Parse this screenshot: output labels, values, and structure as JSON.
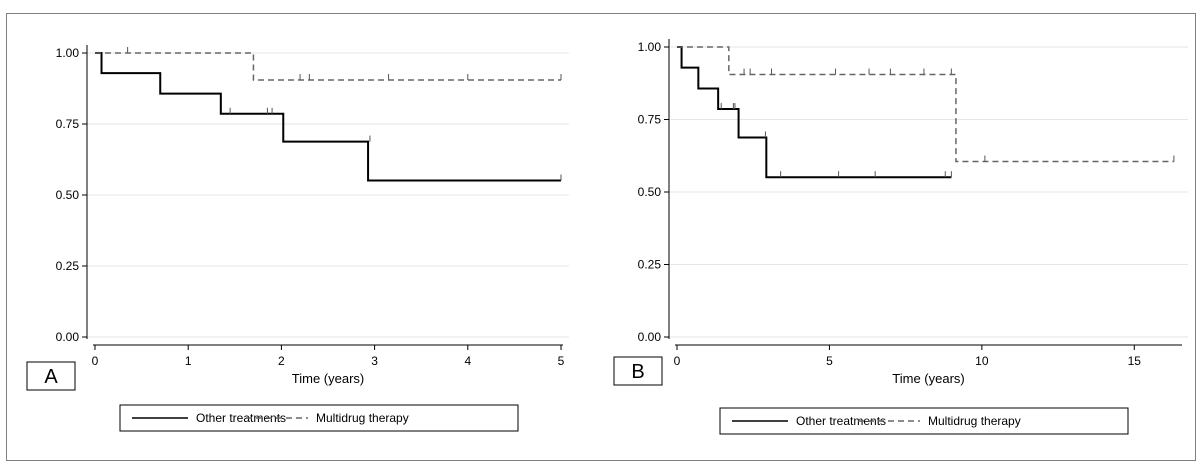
{
  "chart_data": [
    {
      "type": "line",
      "panel_label": "A",
      "xlabel": "Time (years)",
      "ylabel": "",
      "xlim": [
        0,
        5
      ],
      "ylim": [
        0,
        1
      ],
      "xticks": [
        0,
        1,
        2,
        3,
        4,
        5
      ],
      "yticks": [
        0.0,
        0.25,
        0.5,
        0.75,
        1.0
      ],
      "ytick_labels": [
        "0.00",
        "0.25",
        "0.50",
        "0.75",
        "1.00"
      ],
      "xtick_labels": [
        "0",
        "1",
        "2",
        "3",
        "4",
        "5"
      ],
      "grid": "horizontal",
      "legend_position": "bottom",
      "series": [
        {
          "name": "Other treatments",
          "style": "solid",
          "color": "#000000",
          "step": [
            [
              0,
              1.0
            ],
            [
              0.07,
              0.929
            ],
            [
              0.7,
              0.857
            ],
            [
              1.35,
              0.786
            ],
            [
              2.02,
              0.688
            ],
            [
              2.93,
              0.551
            ],
            [
              5.0,
              0.551
            ]
          ],
          "censored": [
            [
              1.45,
              0.786
            ],
            [
              1.85,
              0.786
            ],
            [
              1.9,
              0.786
            ],
            [
              2.95,
              0.688
            ],
            [
              5.0,
              0.551
            ]
          ]
        },
        {
          "name": "Multidrug therapy",
          "style": "dashed",
          "color": "#666666",
          "step": [
            [
              0,
              1.0
            ],
            [
              1.7,
              0.905
            ],
            [
              5.0,
              0.905
            ]
          ],
          "censored": [
            [
              0.35,
              1.0
            ],
            [
              2.2,
              0.905
            ],
            [
              2.3,
              0.905
            ],
            [
              3.15,
              0.905
            ],
            [
              4.0,
              0.905
            ],
            [
              5.0,
              0.905
            ]
          ]
        }
      ]
    },
    {
      "type": "line",
      "panel_label": "B",
      "xlabel": "Time (years)",
      "ylabel": "",
      "xlim": [
        0,
        16.5
      ],
      "ylim": [
        0,
        1
      ],
      "xticks": [
        0,
        5,
        10,
        15
      ],
      "yticks": [
        0.0,
        0.25,
        0.5,
        0.75,
        1.0
      ],
      "ytick_labels": [
        "0.00",
        "0.25",
        "0.50",
        "0.75",
        "1.00"
      ],
      "xtick_labels": [
        "0",
        "5",
        "10",
        "15"
      ],
      "grid": "horizontal",
      "legend_position": "bottom",
      "series": [
        {
          "name": "Other treatments",
          "style": "solid",
          "color": "#000000",
          "step": [
            [
              0,
              1.0
            ],
            [
              0.15,
              0.929
            ],
            [
              0.7,
              0.857
            ],
            [
              1.35,
              0.786
            ],
            [
              2.02,
              0.688
            ],
            [
              2.93,
              0.551
            ],
            [
              9.0,
              0.551
            ]
          ],
          "censored": [
            [
              1.45,
              0.786
            ],
            [
              1.85,
              0.786
            ],
            [
              1.9,
              0.786
            ],
            [
              2.9,
              0.688
            ],
            [
              3.4,
              0.551
            ],
            [
              5.3,
              0.551
            ],
            [
              6.5,
              0.551
            ],
            [
              8.8,
              0.551
            ],
            [
              9.0,
              0.551
            ]
          ]
        },
        {
          "name": "Multidrug therapy",
          "style": "dashed",
          "color": "#666666",
          "step": [
            [
              0,
              1.0
            ],
            [
              1.7,
              0.905
            ],
            [
              9.15,
              0.605
            ],
            [
              16.3,
              0.605
            ]
          ],
          "censored": [
            [
              2.2,
              0.905
            ],
            [
              2.4,
              0.905
            ],
            [
              3.1,
              0.905
            ],
            [
              5.2,
              0.905
            ],
            [
              6.3,
              0.905
            ],
            [
              7.0,
              0.905
            ],
            [
              8.1,
              0.905
            ],
            [
              9.0,
              0.905
            ],
            [
              10.1,
              0.605
            ],
            [
              16.3,
              0.605
            ]
          ]
        }
      ]
    }
  ]
}
